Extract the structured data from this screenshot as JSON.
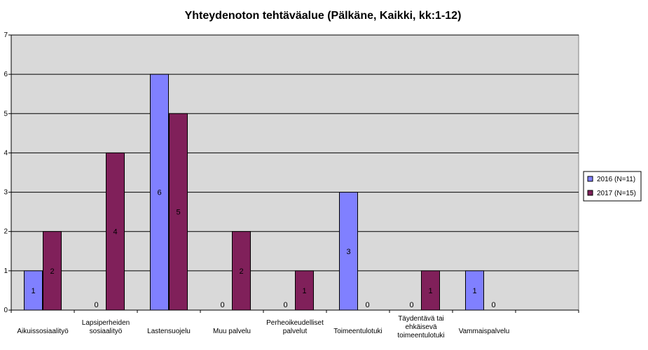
{
  "chart_data": {
    "type": "bar",
    "title": "Yhteydenoton tehtäväalue (Pälkäne, Kaikki, kk:1-12)",
    "xlabel": "",
    "ylabel": "",
    "ylim": [
      0,
      7
    ],
    "yticks": [
      "0",
      "1",
      "2",
      "3",
      "4",
      "5",
      "6",
      "7"
    ],
    "grid": true,
    "legend_position": "right",
    "categories": [
      [
        "Aikuissosiaalityö"
      ],
      [
        "Lapsiperheiden",
        "sosiaalityö"
      ],
      [
        "Lastensuojelu"
      ],
      [
        "Muu palvelu"
      ],
      [
        "Perheoikeudelliset",
        "palvelut"
      ],
      [
        "Toimeentulotuki"
      ],
      [
        "Täydentävä tai",
        "ehkäisevä",
        "toimeentulotuki"
      ],
      [
        "Vammaispalvelu"
      ],
      [
        ""
      ]
    ],
    "series": [
      {
        "name": "2016 (N=11)",
        "color": "#8080ff",
        "values": [
          1,
          0,
          6,
          0,
          0,
          3,
          0,
          1,
          null
        ]
      },
      {
        "name": "2017 (N=15)",
        "color": "#80205a",
        "values": [
          2,
          4,
          5,
          2,
          1,
          0,
          1,
          0,
          null
        ]
      }
    ],
    "plot_background": "#d9d9d9",
    "gridline_color": "#000000"
  }
}
